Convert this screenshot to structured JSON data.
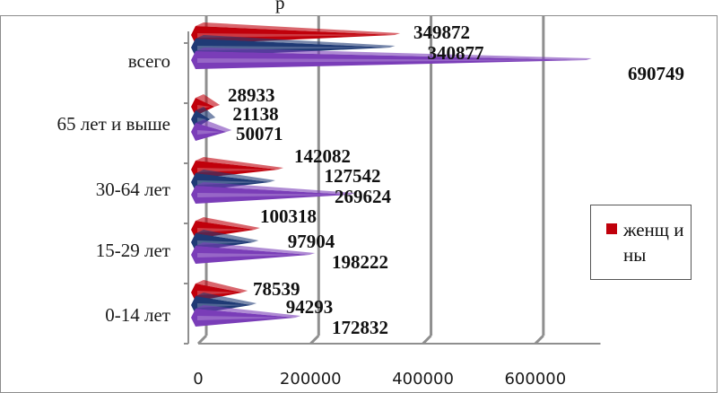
{
  "chart_data": {
    "type": "bar",
    "orientation": "horizontal",
    "title": "р",
    "categories": [
      "0-14 лет",
      "15-29 лет",
      "30-64 лет",
      "65 лет и выше",
      "всего"
    ],
    "series": [
      {
        "name": "женщины",
        "color": "#c0000b",
        "values": [
          78539,
          100318,
          142082,
          28933,
          349872
        ]
      },
      {
        "color": "#1f3a75",
        "values": [
          94293,
          97904,
          127542,
          21138,
          340877
        ]
      },
      {
        "color": "#7a3db8",
        "values": [
          172832,
          198222,
          269624,
          50071,
          690749
        ]
      }
    ],
    "xlim": [
      0,
      700000
    ],
    "xticks": [
      0,
      200000,
      400000,
      600000
    ],
    "xtick_labels": [
      "0",
      "200000",
      "400000",
      "600000"
    ],
    "grid": true,
    "legend": {
      "position": "right",
      "text": "женщ ины"
    }
  }
}
